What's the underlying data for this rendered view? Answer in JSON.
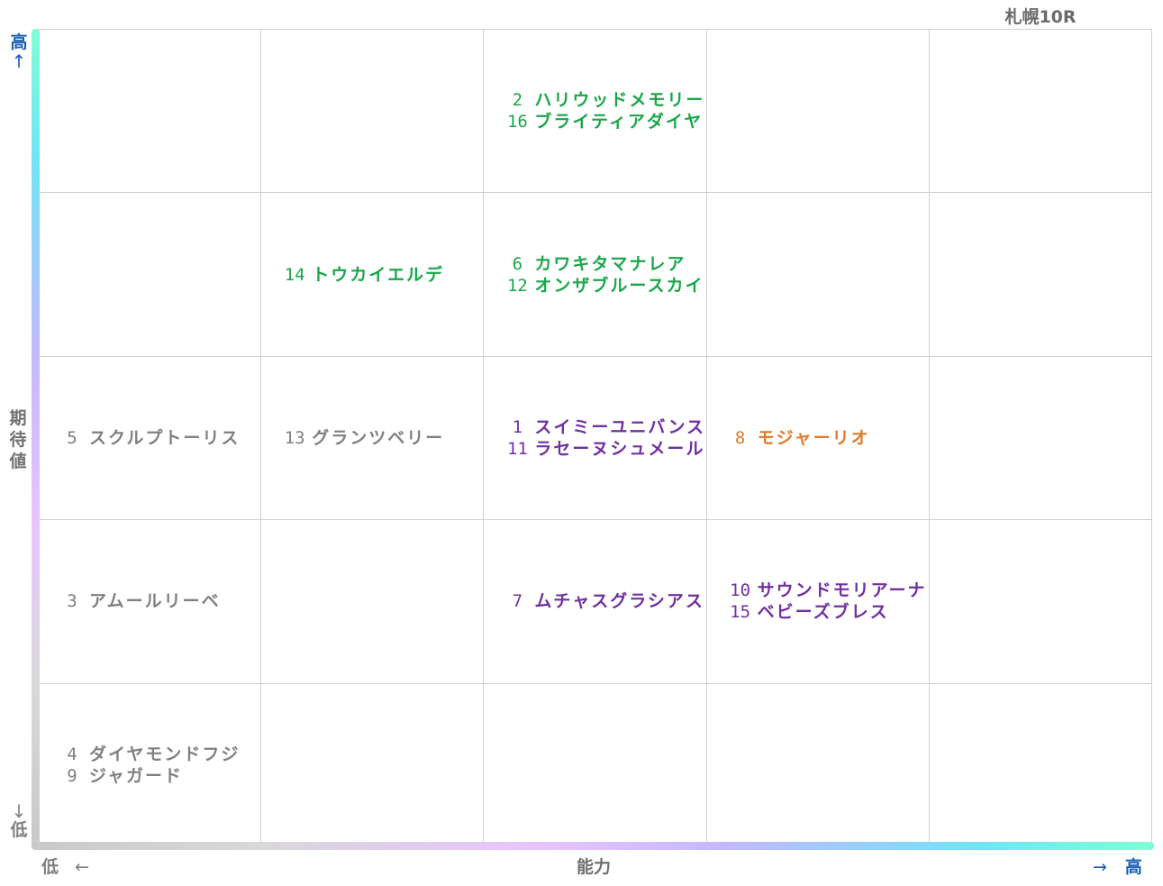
{
  "race_title": "札幌10R",
  "axes": {
    "y_label": "期待値",
    "y_high": "高",
    "y_low": "低",
    "y_high_arrow": "↑",
    "y_low_arrow": "↓",
    "x_label": "能力",
    "x_low": "低",
    "x_high": "高",
    "x_low_arrow": "←",
    "x_high_arrow": "→"
  },
  "colors": {
    "green": "#1aa64a",
    "purple": "#7030a0",
    "orange": "#e07b2a",
    "gray": "#808080"
  },
  "chart_data": {
    "type": "table",
    "rows": 5,
    "cols": 5,
    "title": "札幌10R",
    "xlabel": "能力",
    "ylabel": "期待値",
    "cells": [
      {
        "row": 0,
        "col": 2,
        "entries": [
          {
            "num": "2",
            "name": "ハリウッドメモリー",
            "color": "green"
          },
          {
            "num": "16",
            "name": "ブライティアダイヤ",
            "color": "green"
          }
        ]
      },
      {
        "row": 1,
        "col": 1,
        "entries": [
          {
            "num": "14",
            "name": "トウカイエルデ",
            "color": "green"
          }
        ]
      },
      {
        "row": 1,
        "col": 2,
        "entries": [
          {
            "num": "6",
            "name": "カワキタマナレア",
            "color": "green"
          },
          {
            "num": "12",
            "name": "オンザブルースカイ",
            "color": "green"
          }
        ]
      },
      {
        "row": 2,
        "col": 0,
        "entries": [
          {
            "num": "5",
            "name": "スクルプトーリス",
            "color": "gray"
          }
        ]
      },
      {
        "row": 2,
        "col": 1,
        "entries": [
          {
            "num": "13",
            "name": "グランツベリー",
            "color": "gray"
          }
        ]
      },
      {
        "row": 2,
        "col": 2,
        "entries": [
          {
            "num": "1",
            "name": "スイミーユニバンス",
            "color": "purple"
          },
          {
            "num": "11",
            "name": "ラセーヌシュメール",
            "color": "purple"
          }
        ]
      },
      {
        "row": 2,
        "col": 3,
        "entries": [
          {
            "num": "8",
            "name": "モジャーリオ",
            "color": "orange"
          }
        ]
      },
      {
        "row": 3,
        "col": 0,
        "entries": [
          {
            "num": "3",
            "name": "アムールリーベ",
            "color": "gray"
          }
        ]
      },
      {
        "row": 3,
        "col": 2,
        "entries": [
          {
            "num": "7",
            "name": "ムチャスグラシアス",
            "color": "purple"
          }
        ]
      },
      {
        "row": 3,
        "col": 3,
        "entries": [
          {
            "num": "10",
            "name": "サウンドモリアーナ",
            "color": "purple"
          },
          {
            "num": "15",
            "name": "ベビーズブレス",
            "color": "purple"
          }
        ]
      },
      {
        "row": 4,
        "col": 0,
        "entries": [
          {
            "num": "4",
            "name": "ダイヤモンドフジ",
            "color": "gray"
          },
          {
            "num": "9",
            "name": "ジャガード",
            "color": "gray"
          }
        ]
      }
    ]
  }
}
